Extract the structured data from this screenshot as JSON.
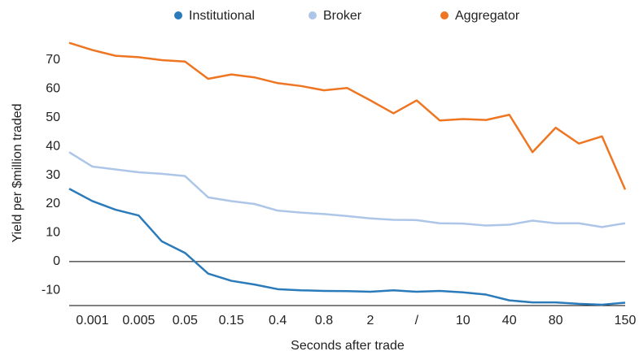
{
  "chart_data": {
    "type": "line",
    "x_label": "Seconds after trade",
    "y_label": "Yield per $million traded",
    "categories": [
      null,
      "0.001",
      null,
      "0.005",
      null,
      "0.05",
      null,
      "0.15",
      null,
      "0.4",
      null,
      "0.8",
      null,
      "2",
      null,
      "/",
      null,
      "10",
      null,
      "40",
      null,
      "80",
      null,
      null,
      "150"
    ],
    "series": [
      {
        "name": "Institutional",
        "color": "#2b7bba",
        "values": [
          25.3,
          21,
          18,
          16,
          7,
          3,
          -4.2,
          -6.7,
          -8,
          -9.6,
          -10,
          -10.2,
          -10.3,
          -10.5,
          -10,
          -10.5,
          -10.2,
          -10.7,
          -11.5,
          -13.5,
          -14.2,
          -14.2,
          -14.7,
          -15,
          -14.3
        ]
      },
      {
        "name": "Broker",
        "color": "#adc6e8",
        "values": [
          38,
          33,
          32,
          31,
          30.5,
          29.7,
          22.3,
          21,
          20,
          17.7,
          17,
          16.5,
          15.8,
          15,
          14.5,
          14.4,
          13.3,
          13.2,
          12.5,
          12.8,
          14.2,
          13.3,
          13.3,
          12,
          13.3
        ]
      },
      {
        "name": "Aggregator",
        "color": "#ee7623",
        "values": [
          76,
          73.5,
          71.5,
          71,
          70,
          69.5,
          63.5,
          65,
          64,
          62,
          61,
          59.5,
          60.3,
          56,
          51.5,
          56,
          49,
          49.5,
          49.2,
          51,
          38,
          46.5,
          41,
          43.5,
          25
        ]
      }
    ],
    "ylim": [
      -15.3,
      76.2
    ],
    "yticks": [
      -10,
      0,
      10,
      20,
      30,
      40,
      50,
      60,
      70
    ],
    "grid": false,
    "legend": "top"
  }
}
